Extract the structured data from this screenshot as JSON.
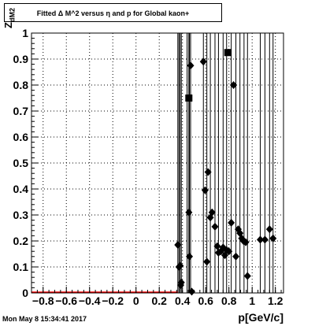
{
  "chart_data": {
    "type": "scatter",
    "title": "Fitted Δ M^2 versus η and p for Global kaon+",
    "xlabel": "p[GeV/c]",
    "ylabel_main": "Z",
    "ylabel_sub": "dM2",
    "xlim": [
      -0.9,
      1.27
    ],
    "ylim": [
      0,
      1
    ],
    "grid": true,
    "xticks": [
      "−0.8",
      "−0.6",
      "−0.4",
      "−0.2",
      "0",
      "0.2",
      "0.4",
      "0.6",
      "0.8",
      "1",
      "1.2"
    ],
    "xtick_values": [
      -0.8,
      -0.6,
      -0.4,
      -0.2,
      0,
      0.2,
      0.4,
      0.6,
      0.8,
      1.0,
      1.2
    ],
    "yticks": [
      "0",
      "0.1",
      "0.2",
      "0.3",
      "0.4",
      "0.5",
      "0.6",
      "0.7",
      "0.8",
      "0.9",
      "1"
    ],
    "ytick_values": [
      0,
      0.1,
      0.2,
      0.3,
      0.4,
      0.5,
      0.6,
      0.7,
      0.8,
      0.9,
      1.0
    ],
    "series": [
      {
        "marker": "diamond",
        "color": "#000000",
        "points": [
          [
            0.36,
            0.185
          ],
          [
            0.37,
            0.1
          ],
          [
            0.38,
            0.105
          ],
          [
            0.385,
            0.03
          ],
          [
            0.39,
            0.04
          ],
          [
            0.455,
            0.31
          ],
          [
            0.46,
            0.14
          ],
          [
            0.47,
            0.875
          ],
          [
            0.48,
            0.005
          ],
          [
            0.58,
            0.89
          ],
          [
            0.595,
            0.395
          ],
          [
            0.61,
            0.12
          ],
          [
            0.62,
            0.465
          ],
          [
            0.64,
            0.29
          ],
          [
            0.655,
            0.31
          ],
          [
            0.68,
            0.255
          ],
          [
            0.7,
            0.18
          ],
          [
            0.71,
            0.155
          ],
          [
            0.73,
            0.16
          ],
          [
            0.75,
            0.175
          ],
          [
            0.765,
            0.145
          ],
          [
            0.78,
            0.165
          ],
          [
            0.8,
            0.16
          ],
          [
            0.82,
            0.27
          ],
          [
            0.84,
            0.8
          ],
          [
            0.86,
            0.14
          ],
          [
            0.88,
            0.245
          ],
          [
            0.895,
            0.23
          ],
          [
            0.91,
            0.21
          ],
          [
            0.925,
            0.2
          ],
          [
            0.945,
            0.195
          ],
          [
            0.96,
            0.065
          ],
          [
            1.07,
            0.205
          ],
          [
            1.11,
            0.205
          ],
          [
            1.15,
            0.245
          ],
          [
            1.18,
            0.21
          ]
        ]
      },
      {
        "marker": "square",
        "color": "#000000",
        "points": [
          [
            0.455,
            0.75
          ],
          [
            0.79,
            0.925
          ]
        ]
      }
    ],
    "error_bar_x": [
      0.36,
      0.37,
      0.38,
      0.39,
      0.44,
      0.455,
      0.46,
      0.47,
      0.58,
      0.61,
      0.64,
      0.68,
      0.71,
      0.75,
      0.78,
      0.82,
      0.86,
      0.895,
      0.93,
      0.96,
      1.07,
      1.11,
      1.15,
      1.18
    ],
    "baseline_color": "#ff0000",
    "baseline_xrange": [
      -0.9,
      0.36
    ]
  },
  "footer": {
    "timestamp": "Mon May  8 15:34:41 2017"
  }
}
